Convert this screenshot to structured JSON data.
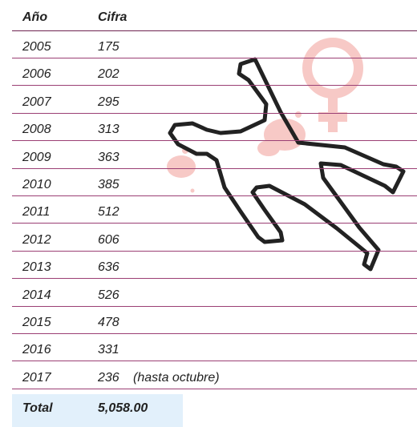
{
  "table": {
    "header": [
      "Año",
      "Cifra"
    ],
    "rows": [
      [
        "2005",
        "175"
      ],
      [
        "2006",
        "202"
      ],
      [
        "2007",
        "295"
      ],
      [
        "2008",
        "313"
      ],
      [
        "2009",
        "363"
      ],
      [
        "2010",
        "385"
      ],
      [
        "2011",
        "512"
      ],
      [
        "2012",
        "606"
      ],
      [
        "2013",
        "636"
      ],
      [
        "2014",
        "526"
      ],
      [
        "2015",
        "478"
      ],
      [
        "2016",
        "331"
      ],
      [
        "2017",
        "236"
      ]
    ],
    "note": "(hasta octubre)",
    "total": [
      "Total",
      "5,058.00"
    ]
  }
}
